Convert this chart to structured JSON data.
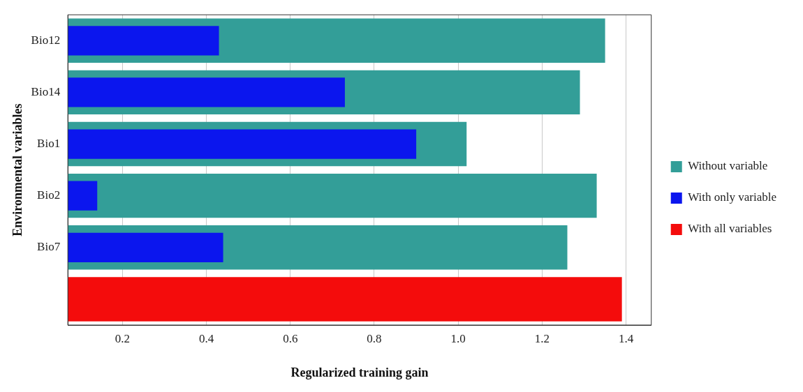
{
  "chart_data": {
    "type": "bar",
    "orientation": "horizontal",
    "xlabel": "Regularized training gain",
    "ylabel": "Environmental variables",
    "categories": [
      "Bio12",
      "Bio14",
      "Bio1",
      "Bio2",
      "Bio7",
      null
    ],
    "series": [
      {
        "name": "Without variable",
        "color": "#339e98",
        "values": [
          1.35,
          1.29,
          1.02,
          1.33,
          1.26,
          null
        ]
      },
      {
        "name": "With only variable",
        "color": "#0b16ee",
        "values": [
          0.43,
          0.73,
          0.9,
          0.14,
          0.44,
          null
        ]
      },
      {
        "name": "With all variables",
        "color": "#f40c0c",
        "values": [
          null,
          null,
          null,
          null,
          null,
          1.39
        ]
      }
    ],
    "xlim": [
      0.07,
      1.46
    ],
    "xticks": [
      {
        "value": 0.2,
        "label": "0.2"
      },
      {
        "value": 0.4,
        "label": "0.4"
      },
      {
        "value": 0.6,
        "label": "0.6"
      },
      {
        "value": 0.8,
        "label": "0.8"
      },
      {
        "value": 1.0,
        "label": "1.0"
      },
      {
        "value": 1.2,
        "label": "1.2"
      },
      {
        "value": 1.4,
        "label": "1.4"
      }
    ],
    "grid": "x",
    "legend": "right"
  }
}
